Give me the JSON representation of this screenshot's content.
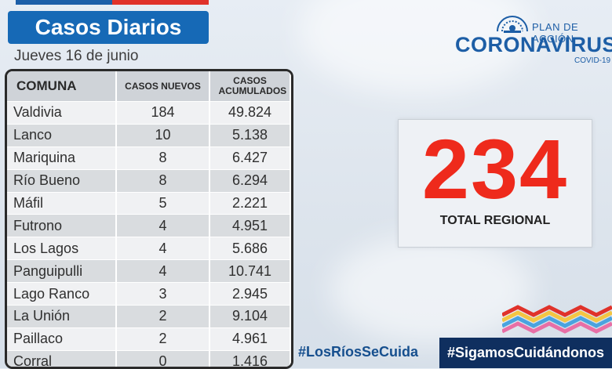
{
  "title": "Casos Diarios",
  "date": "Jueves 16 de junio",
  "table": {
    "headers": [
      "COMUNA",
      "CASOS NUEVOS",
      "CASOS ACUMULADOS"
    ],
    "rows": [
      {
        "comuna": "Valdivia",
        "nuevos": "184",
        "acumulados": "49.824"
      },
      {
        "comuna": "Lanco",
        "nuevos": "10",
        "acumulados": "5.138"
      },
      {
        "comuna": "Mariquina",
        "nuevos": "8",
        "acumulados": "6.427"
      },
      {
        "comuna": "Río Bueno",
        "nuevos": "8",
        "acumulados": "6.294"
      },
      {
        "comuna": "Máfil",
        "nuevos": "5",
        "acumulados": "2.221"
      },
      {
        "comuna": "Futrono",
        "nuevos": "4",
        "acumulados": "4.951"
      },
      {
        "comuna": "Los Lagos",
        "nuevos": "4",
        "acumulados": "5.686"
      },
      {
        "comuna": "Panguipulli",
        "nuevos": "4",
        "acumulados": "10.741"
      },
      {
        "comuna": "Lago Ranco",
        "nuevos": "3",
        "acumulados": "2.945"
      },
      {
        "comuna": "La Unión",
        "nuevos": "2",
        "acumulados": "9.104"
      },
      {
        "comuna": "Paillaco",
        "nuevos": "2",
        "acumulados": "4.961"
      },
      {
        "comuna": "Corral",
        "nuevos": "0",
        "acumulados": "1.416"
      }
    ]
  },
  "total": {
    "value": "234",
    "label": "TOTAL REGIONAL"
  },
  "logo": {
    "plan": "PLAN DE ACCIÓN",
    "main": "CORONAVIRUS",
    "sub": "COVID-19",
    "icon": "government-logo-icon"
  },
  "hashtags": {
    "left": "#LosRíosSeCuida",
    "right": "#SigamosCuidándonos"
  },
  "colors": {
    "accent_blue": "#1669b6",
    "total_red": "#ee2a1c",
    "dark_navy": "#0f2f5f"
  }
}
